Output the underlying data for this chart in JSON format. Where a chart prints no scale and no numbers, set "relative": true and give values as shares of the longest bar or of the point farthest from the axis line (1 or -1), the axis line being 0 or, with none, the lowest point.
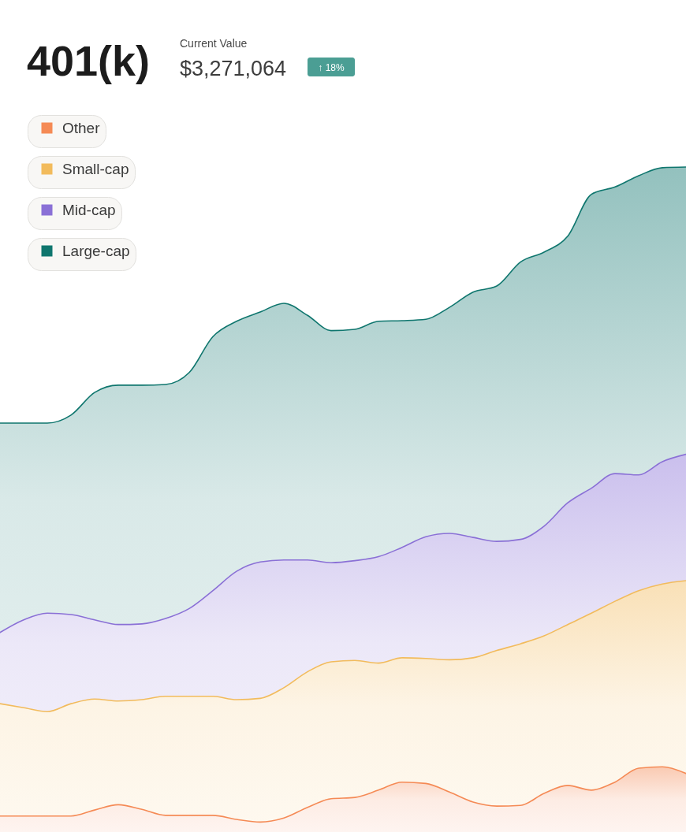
{
  "chart_data": {
    "type": "area",
    "title": "401(k)",
    "subtitle": "Current Value",
    "annotations": [
      "$3,271,064",
      "↑ 18%"
    ],
    "relative": true,
    "legend": "top left",
    "categories": [
      null,
      null,
      null,
      null,
      null,
      null,
      null,
      null,
      null,
      null,
      null,
      null,
      null,
      null,
      null,
      null,
      null,
      null,
      null,
      null,
      null,
      null,
      null,
      null,
      null,
      null,
      null,
      null,
      null,
      null
    ],
    "series": [
      {
        "name": "Other",
        "color": "#f58a55",
        "values": [
          0.024,
          0.024,
          0.024,
          0.024,
          0.033,
          0.041,
          0.034,
          0.025,
          0.025,
          0.025,
          0.019,
          0.015,
          0.021,
          0.037,
          0.05,
          0.052,
          0.063,
          0.075,
          0.073,
          0.06,
          0.045,
          0.039,
          0.04,
          0.058,
          0.07,
          0.063,
          0.075,
          0.096,
          0.098,
          0.088
        ]
      },
      {
        "name": "Small-cap",
        "color": "#f2bb5c",
        "values": [
          0.193,
          0.187,
          0.181,
          0.193,
          0.2,
          0.197,
          0.199,
          0.204,
          0.204,
          0.204,
          0.199,
          0.201,
          0.217,
          0.241,
          0.256,
          0.258,
          0.254,
          0.262,
          0.261,
          0.259,
          0.262,
          0.273,
          0.283,
          0.295,
          0.312,
          0.329,
          0.347,
          0.363,
          0.373,
          0.378
        ]
      },
      {
        "name": "Mid-cap",
        "color": "#8a70d6",
        "values": [
          0.3,
          0.319,
          0.329,
          0.327,
          0.319,
          0.312,
          0.313,
          0.321,
          0.336,
          0.363,
          0.392,
          0.406,
          0.409,
          0.409,
          0.405,
          0.408,
          0.414,
          0.428,
          0.444,
          0.449,
          0.443,
          0.437,
          0.44,
          0.46,
          0.495,
          0.517,
          0.539,
          0.537,
          0.557,
          0.568
        ]
      },
      {
        "name": "Large-cap",
        "color": "#0f766e",
        "values": [
          0.615,
          0.615,
          0.615,
          0.627,
          0.661,
          0.672,
          0.672,
          0.673,
          0.691,
          0.745,
          0.768,
          0.782,
          0.795,
          0.777,
          0.754,
          0.756,
          0.768,
          0.769,
          0.771,
          0.789,
          0.812,
          0.821,
          0.857,
          0.872,
          0.896,
          0.959,
          0.97,
          0.987,
          0.999,
          1.0
        ]
      }
    ]
  }
}
